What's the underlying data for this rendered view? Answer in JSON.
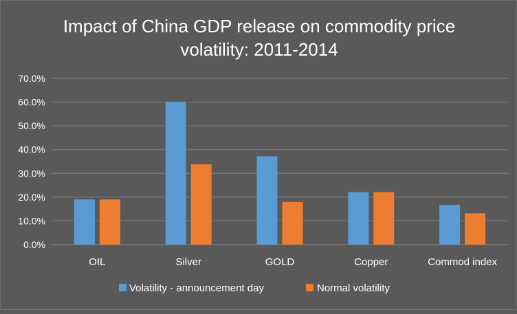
{
  "chart_data": {
    "type": "bar",
    "title_lines": [
      "Impact of China GDP release on commodity price",
      "volatility: 2011-2014"
    ],
    "categories": [
      "OIL",
      "Silver",
      "GOLD",
      "Copper",
      "Commod index"
    ],
    "series": [
      {
        "name": "Volatility - announcement day",
        "values": [
          0.19,
          0.6,
          0.372,
          0.221,
          0.167
        ],
        "color": "#5b9bd5"
      },
      {
        "name": "Normal volatility",
        "values": [
          0.19,
          0.338,
          0.18,
          0.221,
          0.132
        ],
        "color": "#ed7d31"
      }
    ],
    "ylim": [
      0,
      0.7
    ],
    "yticks": [
      "0.0%",
      "10.0%",
      "20.0%",
      "30.0%",
      "40.0%",
      "50.0%",
      "60.0%",
      "70.0%"
    ],
    "xlabel": "",
    "ylabel": "",
    "grid": true,
    "legend": "bottom",
    "gridline_color": "#7f7f7f",
    "axis_color": "#8c8c8c"
  }
}
